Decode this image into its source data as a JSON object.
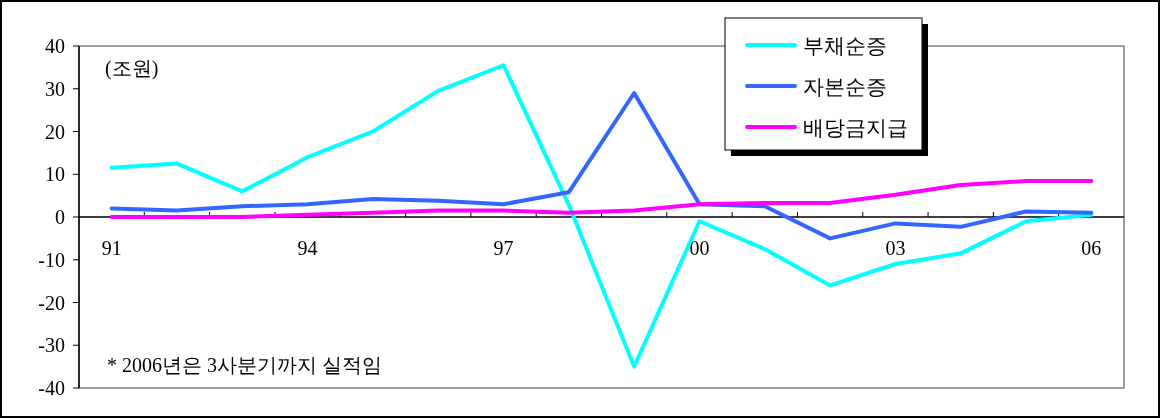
{
  "chart_data": {
    "type": "line",
    "categories": [
      "91",
      null,
      null,
      "94",
      null,
      null,
      "97",
      null,
      null,
      "00",
      null,
      null,
      "03",
      null,
      null,
      "06"
    ],
    "series": [
      {
        "name": "부채순증",
        "color": "#00ffff",
        "values": [
          11.5,
          12.5,
          6,
          14,
          20,
          29.5,
          35.5,
          2.8,
          -35,
          -1,
          -7.5,
          -16,
          -11,
          -8.5,
          -1,
          0.5
        ]
      },
      {
        "name": "자본순증",
        "color": "#3366ff",
        "values": [
          2,
          1.5,
          2.5,
          3,
          4.2,
          3.8,
          3,
          5.8,
          29,
          3,
          2.5,
          -5,
          -1.5,
          -2.3,
          1.3,
          1
        ]
      },
      {
        "name": "배당금지급",
        "color": "#ff00ff",
        "values": [
          0,
          0,
          0,
          0.5,
          1,
          1.5,
          1.5,
          1,
          1.5,
          3,
          3.3,
          3.3,
          5.2,
          7.5,
          8.4,
          8.4
        ]
      }
    ],
    "ylim": [
      -40,
      40
    ],
    "yticks": [
      -40,
      -30,
      -20,
      -10,
      0,
      10,
      20,
      30,
      40
    ],
    "grid": false,
    "legend": "top right",
    "line_style": "solid",
    "marker": "none",
    "annotations": [
      "(조원)",
      "* 2006년은 3사분기까지 실적임"
    ]
  }
}
